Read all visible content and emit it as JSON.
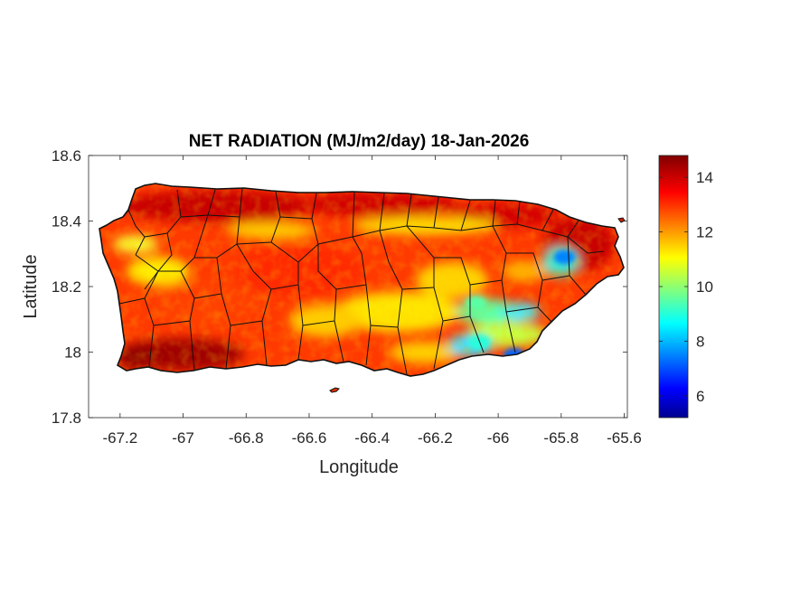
{
  "title": "NET RADIATION (MJ/m2/day) 18-Jan-2026",
  "xlabel": "Longitude",
  "ylabel": "Latitude",
  "x_ticks": [
    "-67.2",
    "-67",
    "-66.8",
    "-66.6",
    "-66.4",
    "-66.2",
    "-66",
    "-65.8",
    "-65.6"
  ],
  "x_tick_values": [
    -67.2,
    -67,
    -66.8,
    -66.6,
    -66.4,
    -66.2,
    -66,
    -65.8,
    -65.6
  ],
  "y_ticks": [
    "18.6",
    "18.4",
    "18.2",
    "18",
    "17.8"
  ],
  "y_tick_values": [
    18.6,
    18.4,
    18.2,
    18,
    17.8
  ],
  "xlim": [
    -67.3,
    -65.59
  ],
  "ylim": [
    17.8,
    18.6
  ],
  "colorbar": {
    "colormap": "jet",
    "range": [
      5.2,
      14.8
    ],
    "ticks": [
      "6",
      "8",
      "10",
      "12",
      "14"
    ],
    "tick_values": [
      6,
      8,
      10,
      12,
      14
    ]
  },
  "map": {
    "region": "Puerto Rico",
    "variable": "net radiation",
    "dominant_range": [
      11,
      14.5
    ],
    "low_areas": [
      {
        "lon": -65.79,
        "lat": 18.29,
        "value": 7.5
      },
      {
        "lon": -65.95,
        "lat": 17.99,
        "value": 7.2
      },
      {
        "lon": -66.06,
        "lat": 18.03,
        "value": 9.0
      },
      {
        "lon": -66.07,
        "lat": 18.15,
        "value": 9.5
      }
    ]
  }
}
